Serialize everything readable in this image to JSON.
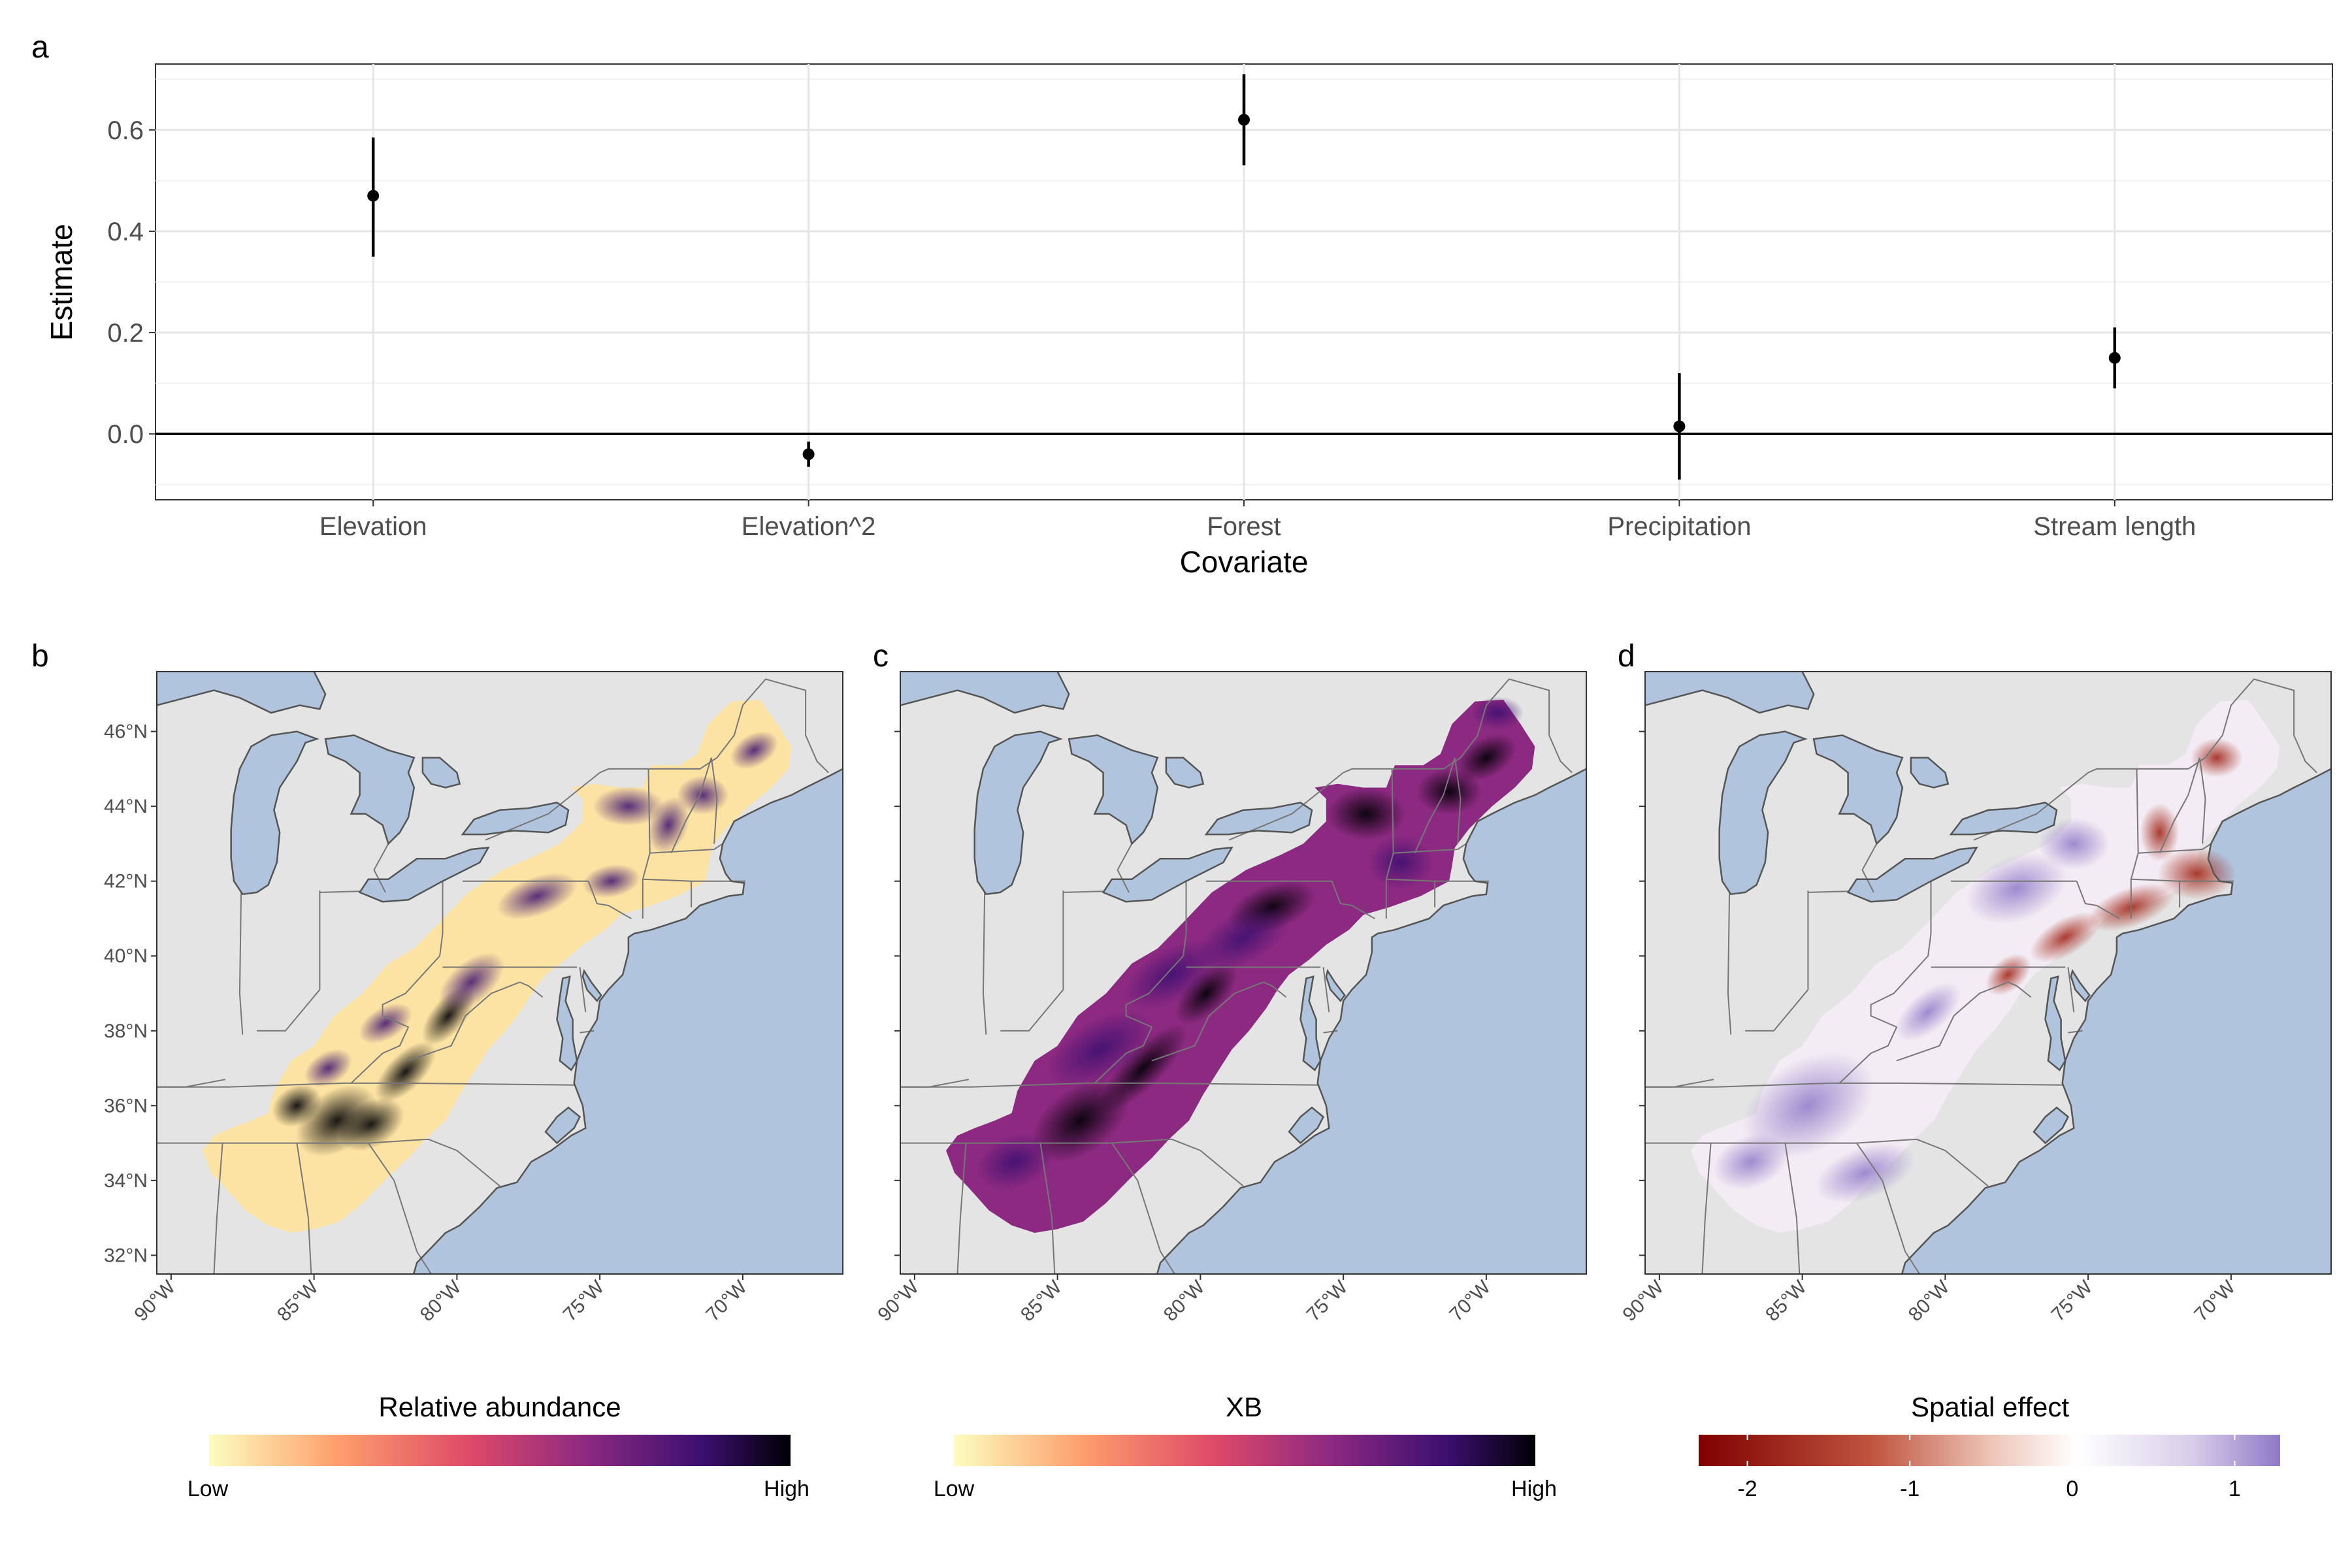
{
  "panels": {
    "a": "a",
    "b": "b",
    "c": "c",
    "d": "d"
  },
  "chart_data": [
    {
      "type": "scatter",
      "subtype": "pointrange",
      "xlabel": "Covariate",
      "ylabel": "Estimate",
      "categories": [
        "Elevation",
        "Elevation^2",
        "Forest",
        "Precipitation",
        "Stream length"
      ],
      "estimate": [
        0.47,
        -0.04,
        0.62,
        0.015,
        0.15
      ],
      "lower": [
        0.35,
        -0.065,
        0.53,
        -0.09,
        0.09
      ],
      "upper": [
        0.585,
        -0.015,
        0.71,
        0.12,
        0.21
      ],
      "ylim": [
        -0.13,
        0.73
      ],
      "yticks": [
        "0.0",
        "0.2",
        "0.4",
        "0.6"
      ],
      "ytick_values": [
        0.0,
        0.2,
        0.4,
        0.6
      ],
      "reference_line": 0,
      "grid": true,
      "point_color": "#000000"
    },
    {
      "type": "heatmap",
      "subtype": "map",
      "legend_title": "Relative abundance",
      "legend_low": "Low",
      "legend_high": "High",
      "xticks": [
        "90°W",
        "85°W",
        "80°W",
        "75°W",
        "70°W"
      ],
      "xtick_values": [
        -90,
        -85,
        -80,
        -75,
        -70
      ],
      "yticks": [
        "32°N",
        "34°N",
        "36°N",
        "38°N",
        "40°N",
        "42°N",
        "44°N",
        "46°N"
      ],
      "ytick_values": [
        32,
        34,
        36,
        38,
        40,
        42,
        44,
        46
      ],
      "xlim": [
        -90.5,
        -66.5
      ],
      "ylim": [
        31.5,
        47.6
      ],
      "colors": [
        "#fcfdbf",
        "#fe9f6d",
        "#de4968",
        "#8c2981",
        "#3b0f70",
        "#000004"
      ]
    },
    {
      "type": "heatmap",
      "subtype": "map",
      "legend_title": "XB",
      "legend_low": "Low",
      "legend_high": "High",
      "xticks": [
        "90°W",
        "85°W",
        "80°W",
        "75°W",
        "70°W"
      ],
      "xtick_values": [
        -90,
        -85,
        -80,
        -75,
        -70
      ],
      "yticks": [
        "32°N",
        "34°N",
        "36°N",
        "38°N",
        "40°N",
        "42°N",
        "44°N",
        "46°N"
      ],
      "ytick_values": [
        32,
        34,
        36,
        38,
        40,
        42,
        44,
        46
      ],
      "xlim": [
        -90.5,
        -66.5
      ],
      "ylim": [
        31.5,
        47.6
      ],
      "colors": [
        "#fcfdbf",
        "#fe9f6d",
        "#de4968",
        "#8c2981",
        "#3b0f70",
        "#000004"
      ]
    },
    {
      "type": "heatmap",
      "subtype": "map",
      "legend_title": "Spatial effect",
      "legend_ticks": [
        "-2",
        "-1",
        "0",
        "1"
      ],
      "legend_tick_values": [
        -2,
        -1,
        0,
        1
      ],
      "legend_range": [
        -2.3,
        1.28
      ],
      "xticks": [
        "90°W",
        "85°W",
        "80°W",
        "75°W",
        "70°W"
      ],
      "xtick_values": [
        -90,
        -85,
        -80,
        -75,
        -70
      ],
      "yticks": [
        "32°N",
        "34°N",
        "36°N",
        "38°N",
        "40°N",
        "42°N",
        "44°N",
        "46°N"
      ],
      "ytick_values": [
        32,
        34,
        36,
        38,
        40,
        42,
        44,
        46
      ],
      "xlim": [
        -90.5,
        -66.5
      ],
      "ylim": [
        31.5,
        47.6
      ],
      "colors": [
        "#7f0000",
        "#c0553f",
        "#edc3b6",
        "#ffffff",
        "#d8cde9",
        "#8f79c8"
      ]
    }
  ]
}
